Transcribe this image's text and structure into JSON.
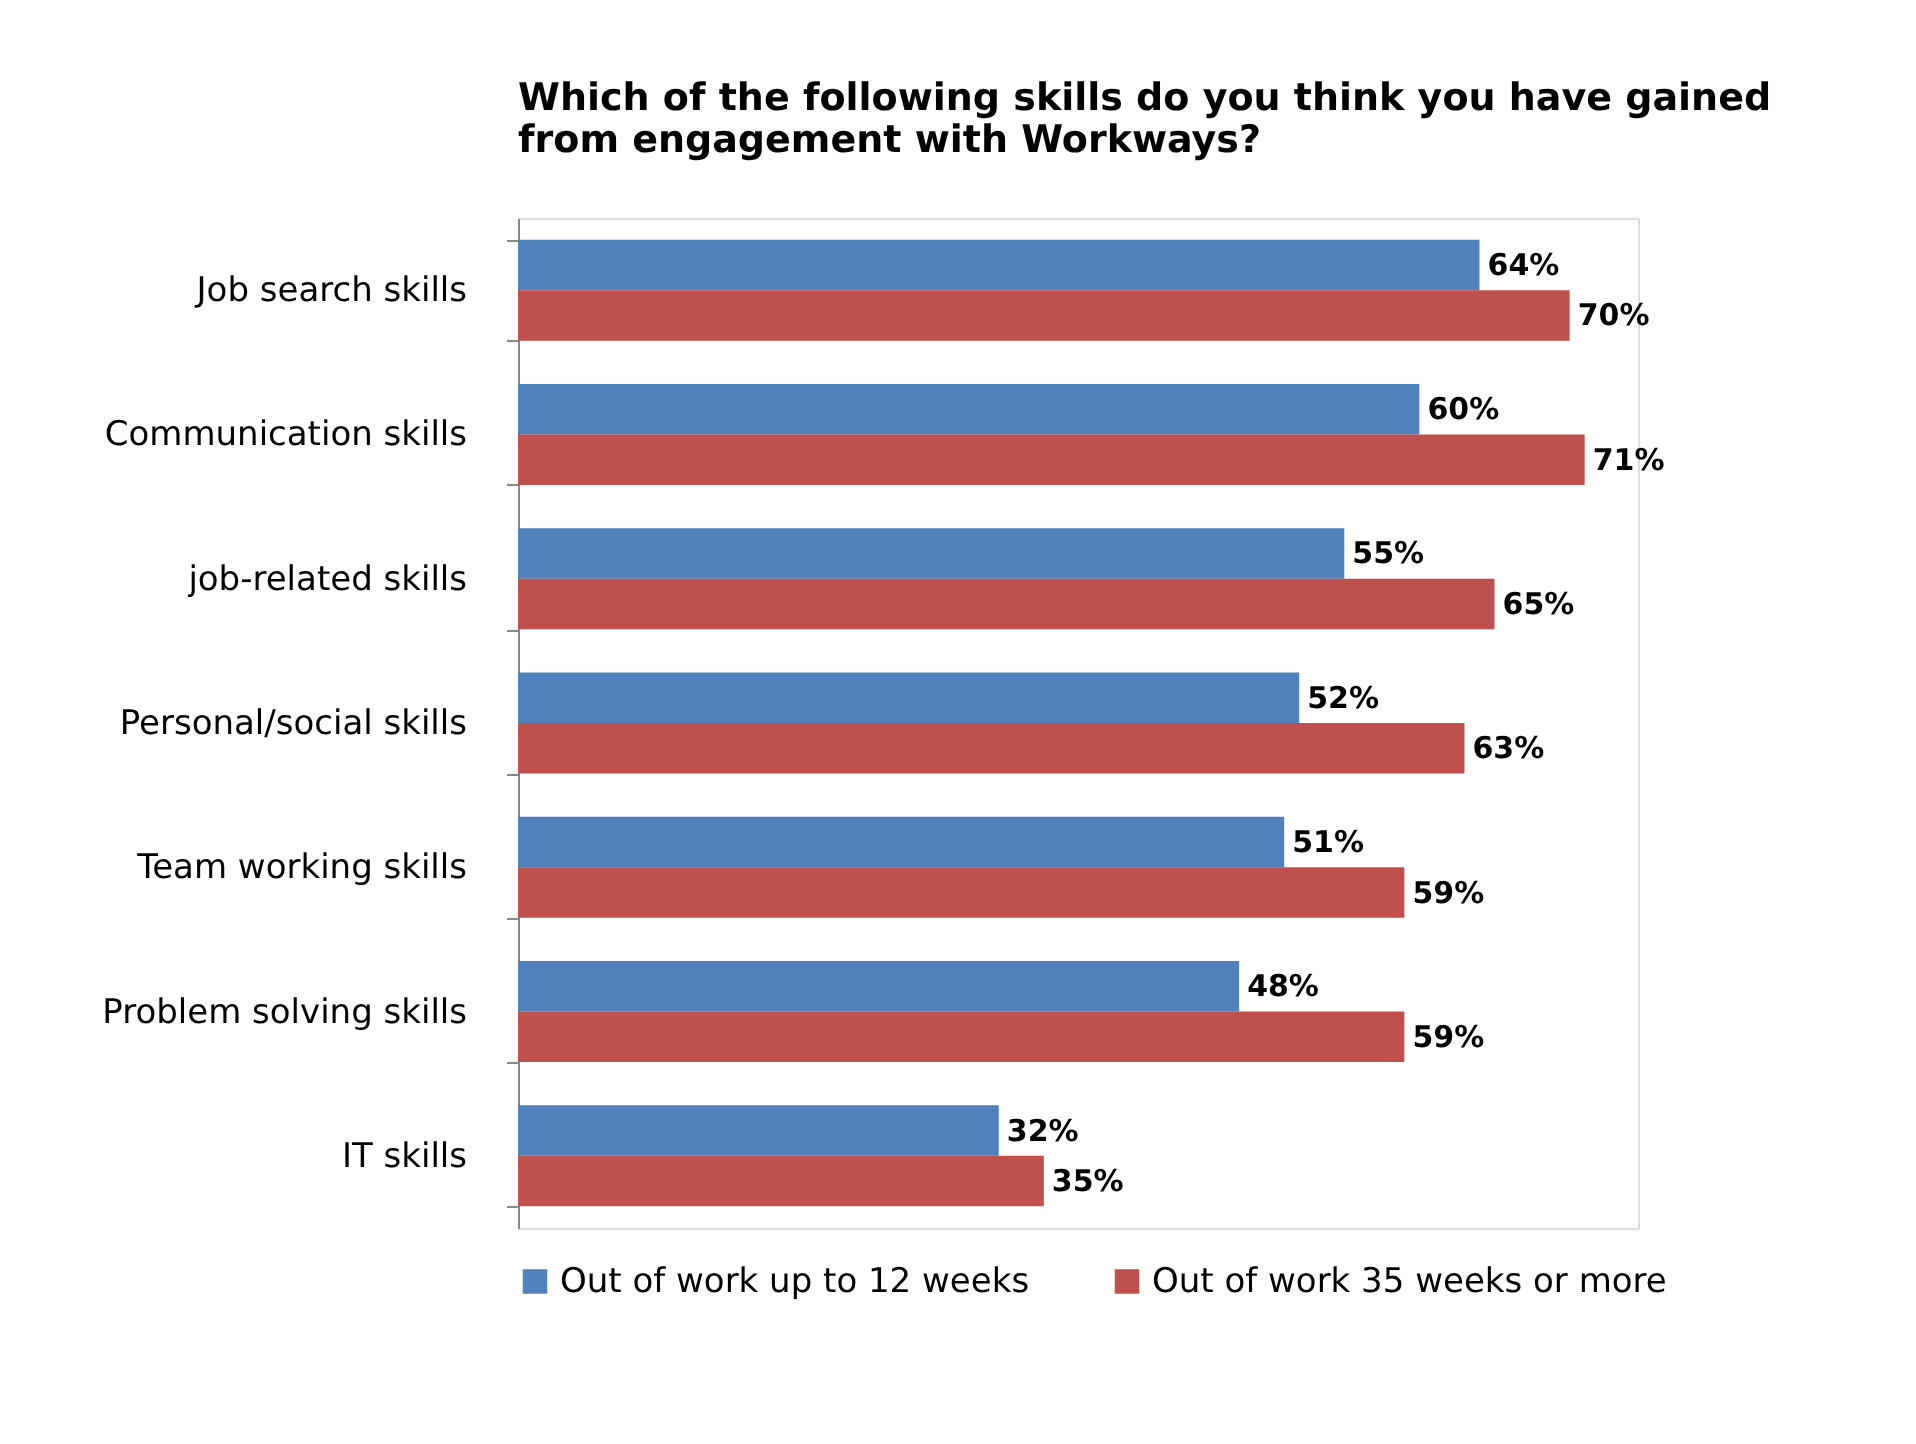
{
  "chart_data": {
    "type": "bar",
    "orientation": "horizontal",
    "title": "Which of the following skills do you think you have gained from engagement with Workways?",
    "categories": [
      "Job search skills",
      "Communication skills",
      "job-related skills",
      "Personal/social skills",
      "Team working skills",
      "Problem solving skills",
      "IT skills"
    ],
    "series": [
      {
        "name": "Out of work up to 12 weeks",
        "color": "#4f81bd",
        "values": [
          64,
          60,
          55,
          52,
          51,
          48,
          32
        ],
        "value_labels": [
          "64%",
          "60%",
          "55%",
          "52%",
          "51%",
          "48%",
          "32%"
        ]
      },
      {
        "name": "Out of work 35 weeks or more",
        "color": "#c0504d",
        "values": [
          70,
          71,
          65,
          63,
          59,
          59,
          35
        ],
        "value_labels": [
          "70%",
          "71%",
          "65%",
          "63%",
          "59%",
          "59%",
          "35%"
        ]
      }
    ],
    "legend": "bottom",
    "grid": false
  }
}
